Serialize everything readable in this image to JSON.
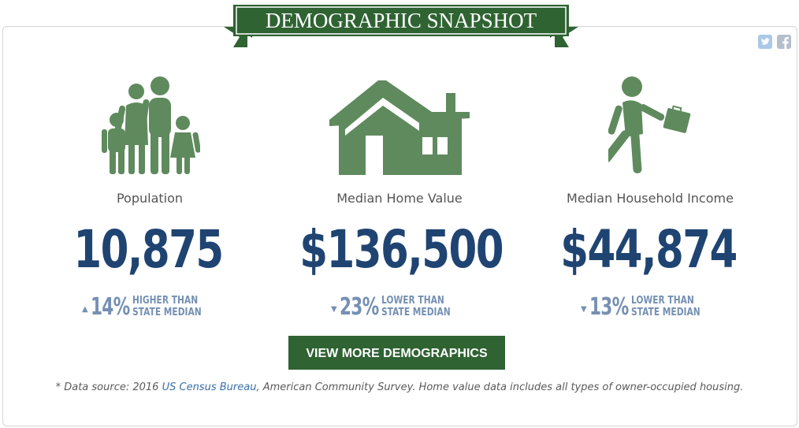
{
  "header": {
    "title": "DEMOGRAPHIC SNAPSHOT"
  },
  "social": {
    "twitter_icon": "twitter-icon",
    "facebook_icon": "facebook-icon"
  },
  "stats": [
    {
      "icon": "family-icon",
      "label": "Population",
      "value": "10,875",
      "direction": "up",
      "arrow": "▲",
      "percent": "14%",
      "compare_line1": "HIGHER THAN",
      "compare_line2": "STATE MEDIAN"
    },
    {
      "icon": "house-icon",
      "label": "Median Home Value",
      "value": "$136,500",
      "direction": "down",
      "arrow": "▼",
      "percent": "23%",
      "compare_line1": "LOWER THAN",
      "compare_line2": "STATE MEDIAN"
    },
    {
      "icon": "walking-worker-icon",
      "label": "Median Household Income",
      "value": "$44,874",
      "direction": "down",
      "arrow": "▼",
      "percent": "13%",
      "compare_line1": "LOWER THAN",
      "compare_line2": "STATE MEDIAN"
    }
  ],
  "cta": {
    "label": "VIEW MORE DEMOGRAPHICS"
  },
  "footnote": {
    "prefix": "* Data source: 2016 ",
    "link_text": "US Census Bureau",
    "suffix": ", American Community Survey. Home value data includes all types of owner-occupied housing."
  },
  "colors": {
    "green": "#2f6332",
    "icon_green": "#5f8a5d",
    "navy": "#1f4472",
    "compare_blue": "#7590b3",
    "link_blue": "#3a6fa8"
  }
}
